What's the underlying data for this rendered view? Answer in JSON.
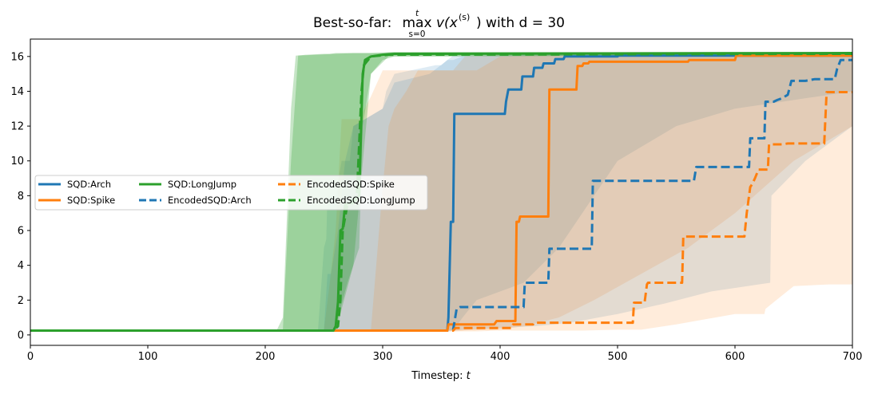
{
  "chart_data": {
    "type": "line",
    "title_prefix": "Best-so-far: ",
    "title_op": "max",
    "title_op_upper": "t",
    "title_op_lower": "s=0",
    "title_expr_a": "v(x",
    "title_expr_sup": "(s)",
    "title_expr_b": ") with d = 30",
    "xlabel_text": "Timestep: ",
    "xlabel_var": "t",
    "ylabel": "",
    "xlim": [
      0,
      700
    ],
    "ylim": [
      -0.6,
      17.0
    ],
    "xticks": [
      0,
      100,
      200,
      300,
      400,
      500,
      600,
      700
    ],
    "yticks": [
      0,
      2,
      4,
      6,
      8,
      10,
      12,
      14,
      16
    ],
    "grid": false,
    "legend_position": "center-left",
    "colors": {
      "Arch": "#1f77b4",
      "Spike": "#ff7f0e",
      "LongJump": "#2ca02c"
    },
    "series": [
      {
        "name": "SQD:Arch",
        "key": "Arch",
        "style": "solid",
        "points": [
          [
            0,
            0.25
          ],
          [
            355,
            0.25
          ],
          [
            356,
            1.0
          ],
          [
            358,
            6.5
          ],
          [
            360,
            6.5
          ],
          [
            361,
            12.7
          ],
          [
            404,
            12.7
          ],
          [
            405,
            13.4
          ],
          [
            407,
            14.1
          ],
          [
            418,
            14.1
          ],
          [
            419,
            14.85
          ],
          [
            428,
            14.85
          ],
          [
            429,
            15.35
          ],
          [
            436,
            15.35
          ],
          [
            437,
            15.6
          ],
          [
            446,
            15.6
          ],
          [
            447,
            15.85
          ],
          [
            454,
            15.85
          ],
          [
            455,
            16.0
          ],
          [
            500,
            16.0
          ],
          [
            501,
            16.05
          ],
          [
            700,
            16.05
          ]
        ],
        "band": [
          [
            0,
            0.2,
            0.3
          ],
          [
            245,
            0.2,
            0.3
          ],
          [
            250,
            0.2,
            5.0
          ],
          [
            252,
            0.2,
            5.5
          ],
          [
            253,
            0.2,
            8.0
          ],
          [
            260,
            0.2,
            8.0
          ],
          [
            265,
            0.2,
            10.0
          ],
          [
            272,
            0.2,
            10.0
          ],
          [
            275,
            0.2,
            12.0
          ],
          [
            300,
            0.2,
            13.0
          ],
          [
            303,
            0.25,
            14.0
          ],
          [
            310,
            0.25,
            15.0
          ],
          [
            345,
            0.25,
            15.5
          ],
          [
            350,
            0.25,
            15.5
          ],
          [
            355,
            0.25,
            15.8
          ],
          [
            360,
            0.25,
            15.8
          ],
          [
            368,
            1.0,
            16.0
          ],
          [
            380,
            2.0,
            16.0
          ],
          [
            420,
            3.0,
            16.1
          ],
          [
            450,
            5.0,
            16.1
          ],
          [
            480,
            8.0,
            16.1
          ],
          [
            500,
            10.0,
            16.2
          ],
          [
            550,
            12.0,
            16.2
          ],
          [
            600,
            13.0,
            16.2
          ],
          [
            700,
            14.0,
            16.2
          ]
        ]
      },
      {
        "name": "SQD:Spike",
        "key": "Spike",
        "style": "solid",
        "points": [
          [
            0,
            0.25
          ],
          [
            355,
            0.25
          ],
          [
            356,
            0.6
          ],
          [
            395,
            0.6
          ],
          [
            397,
            0.8
          ],
          [
            413,
            0.8
          ],
          [
            414,
            6.5
          ],
          [
            416,
            6.5
          ],
          [
            417,
            6.8
          ],
          [
            441,
            6.8
          ],
          [
            442,
            14.1
          ],
          [
            465,
            14.1
          ],
          [
            466,
            15.45
          ],
          [
            470,
            15.45
          ],
          [
            471,
            15.6
          ],
          [
            475,
            15.6
          ],
          [
            476,
            15.7
          ],
          [
            560,
            15.7
          ],
          [
            561,
            15.8
          ],
          [
            600,
            15.8
          ],
          [
            601,
            16.05
          ],
          [
            700,
            16.05
          ]
        ],
        "band": [
          [
            0,
            0.2,
            0.3
          ],
          [
            250,
            0.2,
            0.3
          ],
          [
            255,
            0.2,
            3.0
          ],
          [
            260,
            0.2,
            6.0
          ],
          [
            265,
            0.2,
            12.4
          ],
          [
            280,
            0.2,
            12.4
          ],
          [
            290,
            0.2,
            13.7
          ],
          [
            300,
            0.2,
            15.2
          ],
          [
            360,
            0.2,
            15.2
          ],
          [
            370,
            0.25,
            16.0
          ],
          [
            400,
            0.3,
            16.1
          ],
          [
            420,
            0.5,
            16.2
          ],
          [
            450,
            1.0,
            16.2
          ],
          [
            480,
            2.0,
            16.2
          ],
          [
            520,
            3.5,
            16.2
          ],
          [
            560,
            5.0,
            16.2
          ],
          [
            600,
            7.0,
            16.2
          ],
          [
            650,
            10.0,
            16.2
          ],
          [
            700,
            12.0,
            16.2
          ]
        ]
      },
      {
        "name": "SQD:LongJump",
        "key": "LongJump",
        "style": "solid",
        "points": [
          [
            0,
            0.25
          ],
          [
            258,
            0.25
          ],
          [
            260,
            0.5
          ],
          [
            262,
            1.9
          ],
          [
            264,
            6.0
          ],
          [
            266,
            6.1
          ],
          [
            268,
            7.5
          ],
          [
            275,
            7.6
          ],
          [
            280,
            8.0
          ],
          [
            283,
            15.0
          ],
          [
            285,
            15.8
          ],
          [
            290,
            16.0
          ],
          [
            300,
            16.1
          ],
          [
            310,
            16.15
          ],
          [
            700,
            16.2
          ]
        ],
        "band": [
          [
            0,
            0.2,
            0.3
          ],
          [
            210,
            0.2,
            0.3
          ],
          [
            215,
            0.2,
            1.0
          ],
          [
            218,
            0.2,
            6.0
          ],
          [
            222,
            0.2,
            13.0
          ],
          [
            226,
            0.2,
            16.05
          ],
          [
            235,
            0.2,
            16.1
          ],
          [
            250,
            0.2,
            16.15
          ],
          [
            255,
            0.2,
            16.15
          ],
          [
            260,
            0.5,
            16.2
          ],
          [
            270,
            3.0,
            16.2
          ],
          [
            280,
            5.0,
            16.2
          ],
          [
            283,
            12.0,
            16.2
          ],
          [
            290,
            15.0,
            16.2
          ],
          [
            300,
            15.8,
            16.2
          ],
          [
            310,
            16.0,
            16.25
          ],
          [
            700,
            16.1,
            16.25
          ]
        ]
      },
      {
        "name": "EncodedSQD:Arch",
        "key": "Arch",
        "style": "dashed",
        "points": [
          [
            0,
            0.25
          ],
          [
            355,
            0.25
          ],
          [
            360,
            0.3
          ],
          [
            363,
            1.5
          ],
          [
            366,
            1.6
          ],
          [
            420,
            1.6
          ],
          [
            421,
            3.0
          ],
          [
            441,
            3.0
          ],
          [
            442,
            4.95
          ],
          [
            478,
            4.95
          ],
          [
            479,
            8.85
          ],
          [
            565,
            8.85
          ],
          [
            567,
            9.65
          ],
          [
            612,
            9.65
          ],
          [
            613,
            11.3
          ],
          [
            625,
            11.3
          ],
          [
            626,
            13.4
          ],
          [
            633,
            13.4
          ],
          [
            636,
            13.5
          ],
          [
            640,
            13.6
          ],
          [
            645,
            13.8
          ],
          [
            648,
            14.6
          ],
          [
            660,
            14.6
          ],
          [
            668,
            14.7
          ],
          [
            685,
            14.7
          ],
          [
            687,
            15.3
          ],
          [
            690,
            15.8
          ],
          [
            700,
            15.8
          ]
        ],
        "band": [
          [
            0,
            0.2,
            0.3
          ],
          [
            250,
            0.2,
            0.3
          ],
          [
            253,
            0.2,
            3.5
          ],
          [
            256,
            0.25,
            3.5
          ],
          [
            262,
            0.25,
            6.0
          ],
          [
            268,
            0.25,
            10.0
          ],
          [
            275,
            0.25,
            12.0
          ],
          [
            300,
            0.25,
            13.0
          ],
          [
            310,
            0.25,
            14.5
          ],
          [
            340,
            0.25,
            15.0
          ],
          [
            360,
            0.25,
            16.05
          ],
          [
            370,
            0.3,
            16.05
          ],
          [
            400,
            0.4,
            16.1
          ],
          [
            430,
            0.5,
            16.1
          ],
          [
            460,
            0.7,
            16.15
          ],
          [
            500,
            1.2,
            16.15
          ],
          [
            540,
            1.8,
            16.2
          ],
          [
            580,
            2.5,
            16.2
          ],
          [
            630,
            3.0,
            16.2
          ],
          [
            631,
            8.0,
            16.2
          ],
          [
            660,
            10.0,
            16.2
          ],
          [
            700,
            12.0,
            16.2
          ]
        ]
      },
      {
        "name": "EncodedSQD:Spike",
        "key": "Spike",
        "style": "dashed",
        "points": [
          [
            0,
            0.25
          ],
          [
            360,
            0.25
          ],
          [
            362,
            0.4
          ],
          [
            410,
            0.4
          ],
          [
            411,
            0.6
          ],
          [
            428,
            0.6
          ],
          [
            429,
            0.7
          ],
          [
            513,
            0.7
          ],
          [
            514,
            1.85
          ],
          [
            523,
            1.85
          ],
          [
            525,
            2.9
          ],
          [
            526,
            3.0
          ],
          [
            555,
            3.0
          ],
          [
            556,
            5.65
          ],
          [
            608,
            5.65
          ],
          [
            610,
            7.0
          ],
          [
            613,
            8.5
          ],
          [
            615,
            8.7
          ],
          [
            617,
            9.0
          ],
          [
            620,
            9.5
          ],
          [
            628,
            9.5
          ],
          [
            629,
            10.95
          ],
          [
            640,
            10.95
          ],
          [
            645,
            11.0
          ],
          [
            676,
            11.0
          ],
          [
            678,
            13.95
          ],
          [
            700,
            13.95
          ]
        ],
        "band": [
          [
            0,
            0.2,
            0.3
          ],
          [
            290,
            0.2,
            0.3
          ],
          [
            300,
            0.2,
            8.5
          ],
          [
            305,
            0.2,
            12.0
          ],
          [
            310,
            0.2,
            13.0
          ],
          [
            320,
            0.2,
            14.0
          ],
          [
            330,
            0.2,
            15.2
          ],
          [
            380,
            0.2,
            15.2
          ],
          [
            400,
            0.25,
            16.0
          ],
          [
            430,
            0.25,
            16.05
          ],
          [
            470,
            0.25,
            16.05
          ],
          [
            500,
            0.3,
            16.1
          ],
          [
            520,
            0.3,
            16.1
          ],
          [
            550,
            0.6,
            16.1
          ],
          [
            600,
            1.2,
            16.1
          ],
          [
            625,
            1.2,
            16.1
          ],
          [
            626,
            1.5,
            16.1
          ],
          [
            650,
            2.8,
            16.2
          ],
          [
            680,
            2.9,
            16.2
          ],
          [
            700,
            2.9,
            16.2
          ]
        ]
      },
      {
        "name": "EncodedSQD:LongJump",
        "key": "LongJump",
        "style": "dashed",
        "points": [
          [
            0,
            0.25
          ],
          [
            258,
            0.25
          ],
          [
            262,
            0.5
          ],
          [
            264,
            2.0
          ],
          [
            266,
            6.0
          ],
          [
            270,
            7.5
          ],
          [
            278,
            8.0
          ],
          [
            282,
            14.0
          ],
          [
            284,
            15.5
          ],
          [
            290,
            16.0
          ],
          [
            305,
            16.1
          ],
          [
            700,
            16.15
          ]
        ],
        "band": [
          [
            0,
            0.2,
            0.3
          ],
          [
            215,
            0.2,
            0.3
          ],
          [
            222,
            0.2,
            10.0
          ],
          [
            228,
            0.2,
            16.05
          ],
          [
            260,
            0.2,
            16.15
          ],
          [
            275,
            4.0,
            16.2
          ],
          [
            290,
            15.0,
            16.2
          ],
          [
            305,
            16.0,
            16.25
          ],
          [
            700,
            16.05,
            16.25
          ]
        ]
      }
    ]
  }
}
